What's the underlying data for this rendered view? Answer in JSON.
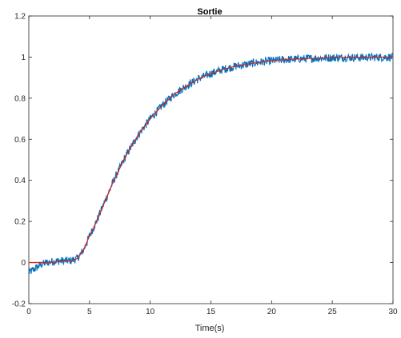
{
  "chart_data": {
    "type": "line",
    "title": "Sortie",
    "xlabel": "Time(s)",
    "ylabel": "",
    "xlim": [
      0,
      30
    ],
    "ylim": [
      -0.2,
      1.2
    ],
    "xticks": [
      0,
      5,
      10,
      15,
      20,
      25,
      30
    ],
    "xtick_labels": [
      "0",
      "5",
      "10",
      "15",
      "20",
      "25",
      "30"
    ],
    "yticks": [
      -0.2,
      0,
      0.2,
      0.4,
      0.6,
      0.8,
      1,
      1.2
    ],
    "ytick_labels": [
      "-0.2",
      "0",
      "0.2",
      "0.4",
      "0.6",
      "0.8",
      "1",
      "1.2"
    ],
    "grid": false,
    "series": [
      {
        "role": "noisy-measurement",
        "color": "#0072BD",
        "x": [
          0,
          0.5,
          1,
          1.5,
          2,
          2.5,
          3,
          3.5,
          4,
          4.5,
          5,
          5.5,
          6,
          6.5,
          7,
          7.5,
          8,
          8.5,
          9,
          9.5,
          10,
          11,
          12,
          13,
          14,
          15,
          16,
          17,
          18,
          19,
          20,
          21,
          22,
          23,
          24,
          25,
          26,
          27,
          28,
          29,
          30
        ],
        "y": [
          -0.05,
          -0.03,
          -0.01,
          0.0,
          0.005,
          0.008,
          0.008,
          0.01,
          0.02,
          0.06,
          0.13,
          0.19,
          0.26,
          0.33,
          0.4,
          0.46,
          0.52,
          0.57,
          0.62,
          0.66,
          0.7,
          0.765,
          0.82,
          0.86,
          0.895,
          0.92,
          0.94,
          0.955,
          0.965,
          0.975,
          0.982,
          0.987,
          0.99,
          0.993,
          0.995,
          0.997,
          0.998,
          0.998,
          0.999,
          0.999,
          1.0
        ],
        "noise_amplitude": 0.02
      },
      {
        "role": "model-response",
        "color": "#D62728",
        "x": [
          0,
          0.5,
          1,
          1.5,
          2,
          2.5,
          3,
          3.5,
          4,
          4.5,
          5,
          5.5,
          6,
          6.5,
          7,
          7.5,
          8,
          8.5,
          9,
          9.5,
          10,
          11,
          12,
          13,
          14,
          15,
          16,
          17,
          18,
          19,
          20,
          21,
          22,
          23,
          24,
          25,
          26,
          27,
          28,
          29,
          30
        ],
        "y": [
          0,
          0,
          0,
          0,
          0.002,
          0.004,
          0.006,
          0.008,
          0.02,
          0.06,
          0.13,
          0.19,
          0.26,
          0.33,
          0.4,
          0.46,
          0.52,
          0.57,
          0.62,
          0.66,
          0.7,
          0.765,
          0.82,
          0.86,
          0.895,
          0.92,
          0.94,
          0.955,
          0.965,
          0.975,
          0.982,
          0.987,
          0.99,
          0.993,
          0.995,
          0.997,
          0.998,
          0.998,
          0.999,
          0.999,
          1.0
        ]
      }
    ]
  }
}
